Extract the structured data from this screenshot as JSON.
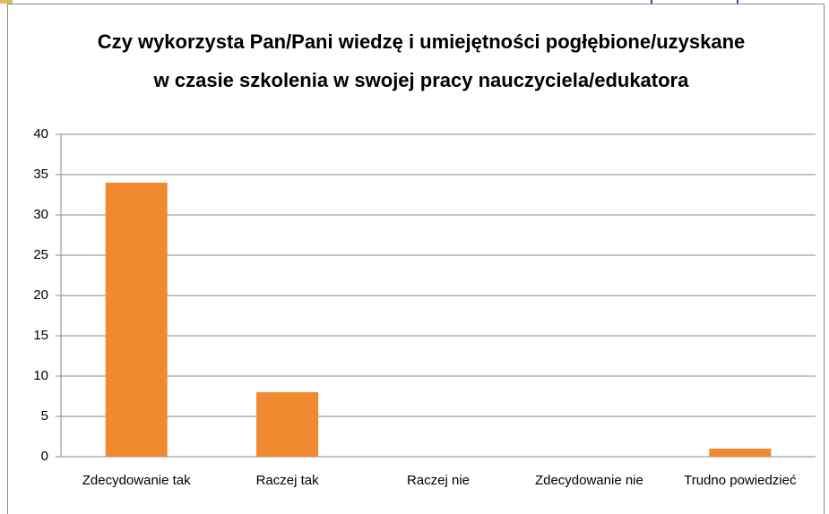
{
  "chart_data": {
    "type": "bar",
    "title": [
      "Czy wykorzysta Pan/Pani wiedzę i umiejętności pogłębione/uzyskane",
      "w czasie szkolenia w swojej pracy nauczyciela/edukatora"
    ],
    "categories": [
      "Zdecydowanie tak",
      "Raczej tak",
      "Raczej nie",
      "Zdecydowanie nie",
      "Trudno powiedzieć"
    ],
    "values": [
      34,
      8,
      0,
      0,
      1
    ],
    "color": "#ef8a30",
    "ylim": [
      0,
      40
    ],
    "yticks": [
      0,
      5,
      10,
      15,
      20,
      25,
      30,
      35,
      40
    ],
    "grid": true
  }
}
